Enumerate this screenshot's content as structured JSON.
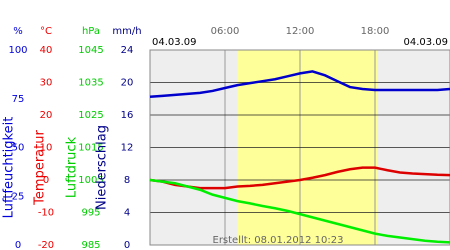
{
  "chart_data": {
    "type": "line",
    "date_left": "04.03.09",
    "date_right": "04.03.09",
    "created": "Erstellt: 08.01.2012 10:23",
    "x": [
      0,
      1,
      2,
      3,
      4,
      5,
      6,
      7,
      8,
      9,
      10,
      11,
      12,
      13,
      14,
      15,
      16,
      17,
      18,
      19,
      20,
      21,
      22,
      23,
      24
    ],
    "xlim": [
      0,
      24
    ],
    "xticks": [
      {
        "value": 6,
        "label": "06:00"
      },
      {
        "value": 12,
        "label": "12:00"
      },
      {
        "value": 18,
        "label": "18:00"
      }
    ],
    "daylight": [
      7,
      18.2
    ],
    "axes": [
      {
        "unit": "%",
        "label": "Luftfeuchtigkeit",
        "color": "#0000dd",
        "ylim": [
          0,
          100
        ],
        "yticks": [
          0,
          25,
          50,
          75,
          100
        ]
      },
      {
        "unit": "°C",
        "label": "Temperatur",
        "color": "#ee0000",
        "ylim": [
          -20,
          40
        ],
        "yticks": [
          -20,
          -10,
          0,
          10,
          20,
          30,
          40
        ]
      },
      {
        "unit": "hPa",
        "label": "Luftdruck",
        "color": "#00cc00",
        "ylim": [
          985,
          1045
        ],
        "yticks": [
          985,
          995,
          1005,
          1015,
          1025,
          1035,
          1045
        ]
      },
      {
        "unit": "mm/h",
        "label": "Niederschlag",
        "color": "#000088",
        "ylim": [
          0,
          24
        ],
        "yticks": [
          0,
          4,
          8,
          12,
          16,
          20,
          24
        ]
      }
    ],
    "series": [
      {
        "axis": 0,
        "color": "#0000cc",
        "values": [
          76,
          76.5,
          77,
          77.5,
          78,
          79,
          80.5,
          82,
          83,
          84,
          85,
          86.5,
          88,
          89,
          87,
          84,
          81,
          80,
          79.5,
          79.5,
          79.5,
          79.5,
          79.5,
          79.5,
          80
        ]
      },
      {
        "axis": 1,
        "color": "#dd0000",
        "values": [
          0,
          -0.5,
          -1.5,
          -2,
          -2.5,
          -2.5,
          -2.5,
          -2,
          -1.8,
          -1.5,
          -1,
          -0.5,
          0,
          0.7,
          1.5,
          2.5,
          3.3,
          3.8,
          3.8,
          3,
          2.3,
          2,
          1.8,
          1.6,
          1.5
        ]
      },
      {
        "axis": 2,
        "color": "#00ee00",
        "values": [
          1005,
          1004.5,
          1004,
          1003,
          1002,
          1000.5,
          999.5,
          998.5,
          997.8,
          997,
          996.3,
          995.5,
          994.5,
          993.5,
          992.5,
          991.5,
          990.5,
          989.5,
          988.5,
          987.8,
          987.3,
          986.8,
          986.3,
          986,
          985.8
        ]
      }
    ]
  }
}
